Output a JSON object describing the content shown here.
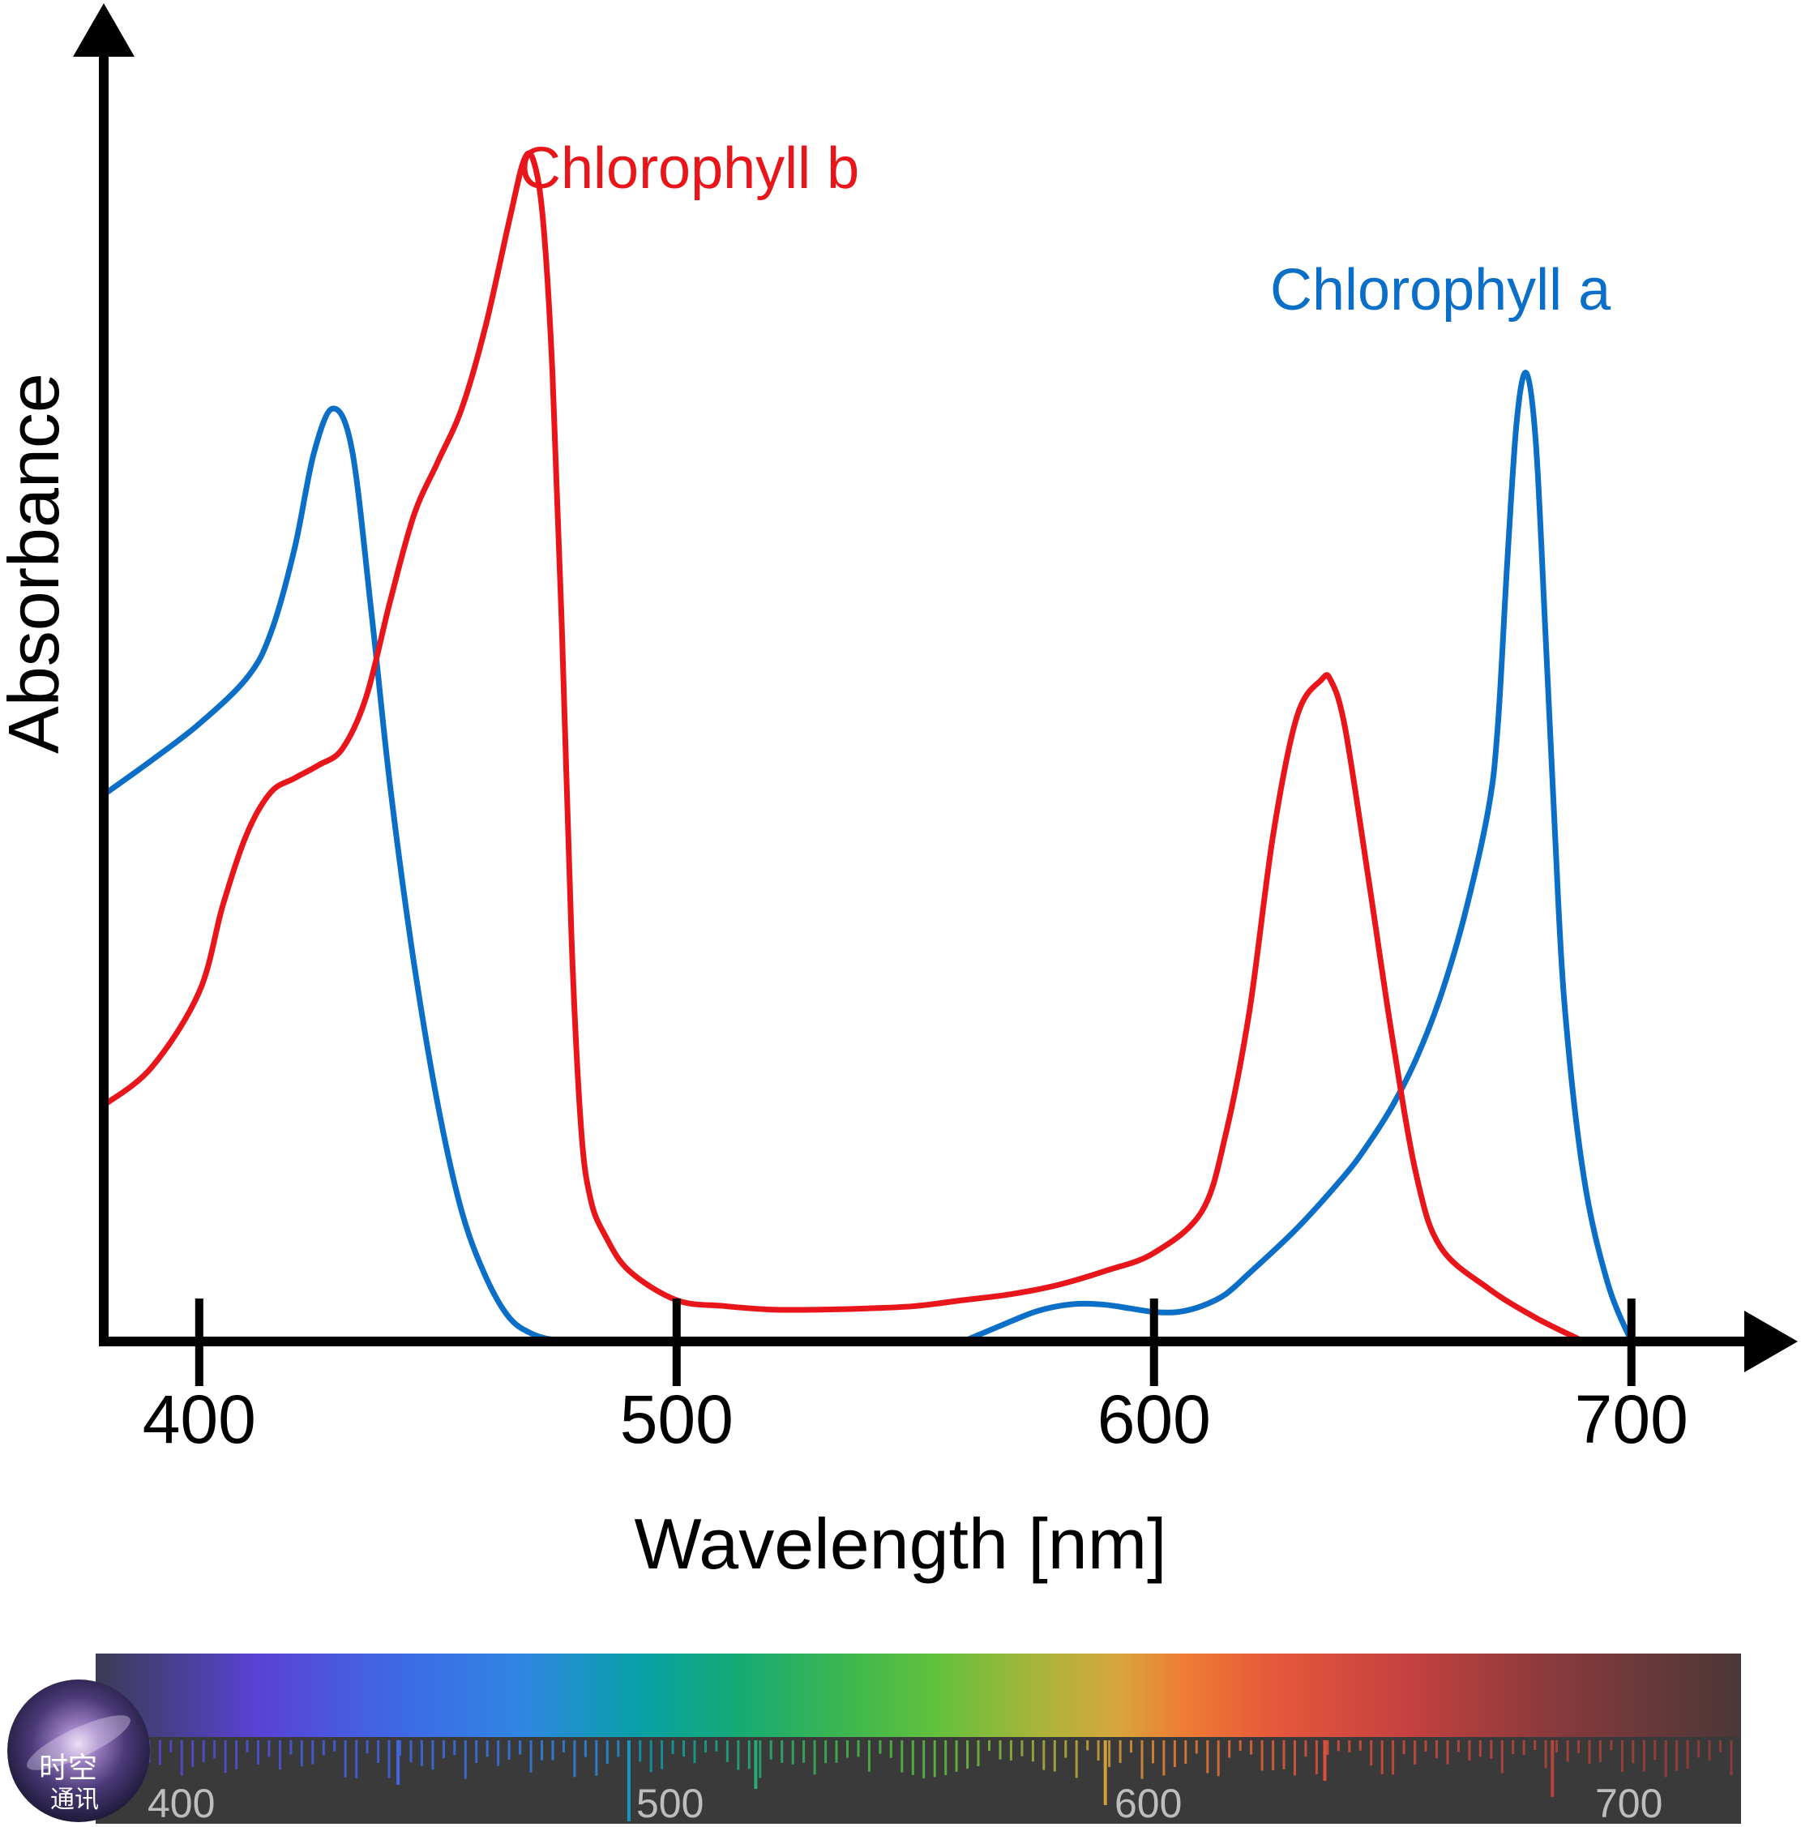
{
  "chart_data": {
    "type": "line",
    "title": "",
    "xlabel": "Wavelength [nm]",
    "ylabel": "Absorbance",
    "xlim": [
      380,
      725
    ],
    "ylim": [
      0,
      1.0
    ],
    "xticks": [
      400,
      500,
      600,
      700
    ],
    "xtick_labels": [
      "400",
      "500",
      "600",
      "700"
    ],
    "grid": false,
    "series": [
      {
        "name": "Chlorophyll a",
        "color": "#0b6fc8",
        "x": [
          380,
          390,
          400,
          410,
          415,
          420,
          424,
          428,
          432,
          436,
          440,
          445,
          450,
          455,
          460,
          465,
          470,
          475,
          480,
          485,
          490,
          500,
          510,
          520,
          530,
          540,
          550,
          560,
          570,
          575,
          580,
          585,
          590,
          595,
          600,
          605,
          610,
          615,
          620,
          630,
          640,
          645,
          650,
          655,
          660,
          665,
          670,
          672,
          674,
          676,
          678,
          680,
          682,
          684,
          686,
          690,
          695,
          700
        ],
        "y": [
          0.463,
          0.492,
          0.523,
          0.562,
          0.6,
          0.672,
          0.752,
          0.79,
          0.755,
          0.62,
          0.47,
          0.32,
          0.2,
          0.11,
          0.055,
          0.02,
          0.006,
          0.001,
          0.0,
          null,
          null,
          null,
          null,
          null,
          null,
          null,
          null,
          0.0,
          0.017,
          0.025,
          0.03,
          0.032,
          0.031,
          0.028,
          0.025,
          0.025,
          0.03,
          0.04,
          0.058,
          0.096,
          0.141,
          0.168,
          0.2,
          0.24,
          0.292,
          0.36,
          0.45,
          0.52,
          0.66,
          0.78,
          0.82,
          0.76,
          0.6,
          0.43,
          0.285,
          0.14,
          0.05,
          0.0
        ]
      },
      {
        "name": "Chlorophyll b",
        "color": "#e8161b",
        "x": [
          380,
          390,
          400,
          405,
          410,
          415,
          420,
          425,
          430,
          435,
          440,
          445,
          450,
          455,
          460,
          465,
          468,
          470,
          472,
          474,
          476,
          478,
          480,
          482,
          485,
          490,
          500,
          510,
          520,
          530,
          540,
          550,
          560,
          570,
          580,
          590,
          600,
          610,
          615,
          620,
          625,
          630,
          635,
          637,
          640,
          645,
          650,
          655,
          660,
          670,
          680,
          690
        ],
        "y": [
          0.2,
          0.232,
          0.296,
          0.37,
          0.43,
          0.465,
          0.477,
          0.488,
          0.502,
          0.546,
          0.627,
          0.7,
          0.745,
          0.79,
          0.86,
          0.95,
          1.0,
          1.0,
          0.95,
          0.82,
          0.6,
          0.34,
          0.18,
          0.12,
          0.09,
          0.06,
          0.035,
          0.03,
          0.027,
          0.027,
          0.028,
          0.03,
          0.035,
          0.04,
          0.048,
          0.06,
          0.075,
          0.11,
          0.175,
          0.28,
          0.43,
          0.53,
          0.56,
          0.56,
          0.52,
          0.39,
          0.255,
          0.14,
          0.08,
          0.045,
          0.02,
          0.0
        ]
      }
    ]
  },
  "spectrum_bar": {
    "labels": [
      "400",
      "500",
      "600",
      "700"
    ]
  },
  "logo": {
    "line1": "时空",
    "line2": "通讯"
  }
}
